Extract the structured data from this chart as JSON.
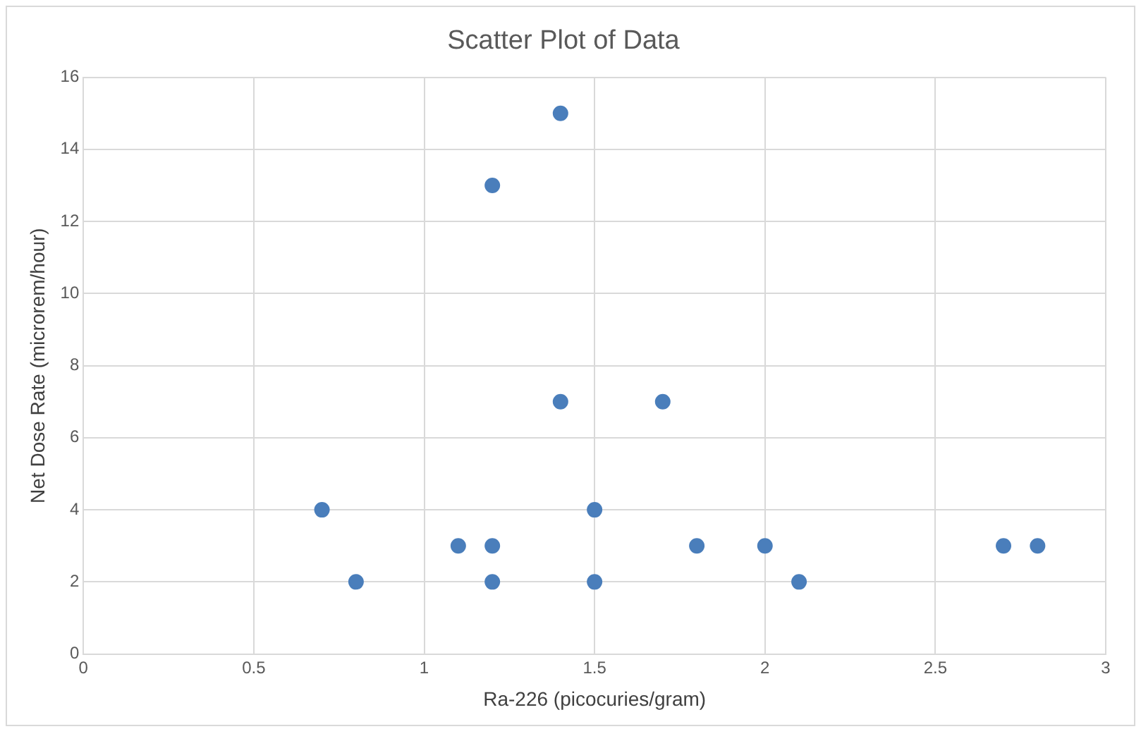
{
  "chart_data": {
    "type": "scatter",
    "title": "Scatter Plot of Data",
    "xlabel": "Ra-226 (picocuries/gram)",
    "ylabel": "Net Dose Rate (microrem/hour)",
    "series": [
      {
        "color": "#4a7ebb",
        "x": [
          0.7,
          0.8,
          1.1,
          1.2,
          1.2,
          1.2,
          1.4,
          1.4,
          1.5,
          1.5,
          1.7,
          1.8,
          2.0,
          2.1,
          2.7,
          2.8
        ],
        "values": [
          4,
          2,
          3,
          13,
          3,
          2,
          15,
          7,
          4,
          2,
          7,
          3,
          3,
          2,
          3,
          3
        ]
      }
    ],
    "xlim": [
      0,
      3
    ],
    "xticks": [
      0,
      0.5,
      1,
      1.5,
      2,
      2.5,
      3
    ],
    "ylim": [
      0,
      16
    ],
    "yticks": [
      0,
      2,
      4,
      6,
      8,
      10,
      12,
      14,
      16
    ],
    "grid": true,
    "legend": false,
    "marker": "circle"
  }
}
